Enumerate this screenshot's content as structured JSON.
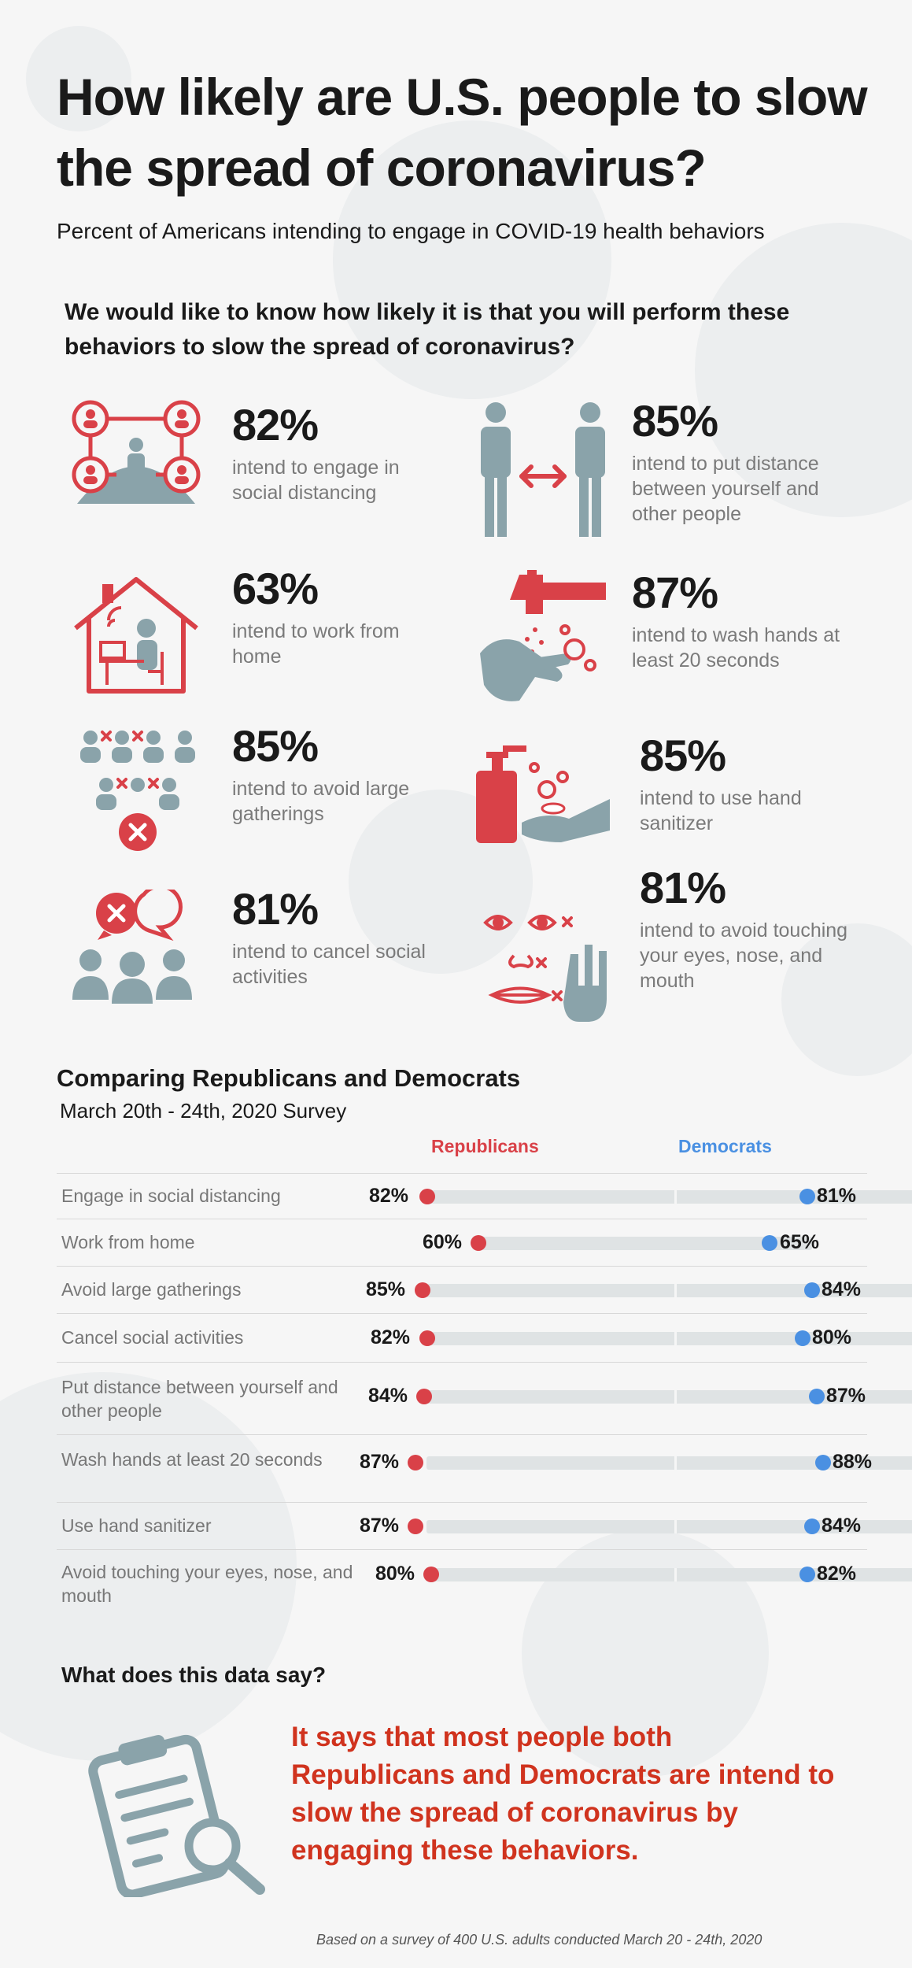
{
  "header": {
    "title": "How likely are U.S. people to slow the spread of coronavirus?",
    "subtitle": "Percent of Americans intending to engage in COVID-19 health behaviors",
    "question": "We would like to know how likely it is that you will perform these behaviors to slow the spread of coronavirus?"
  },
  "stats": [
    {
      "pct": "82%",
      "desc": "intend to engage in social distancing",
      "icon": "social-network-icon"
    },
    {
      "pct": "85%",
      "desc": "intend to put distance between yourself and other people",
      "icon": "distance-people-icon"
    },
    {
      "pct": "63%",
      "desc": "intend to work from home",
      "icon": "work-from-home-icon"
    },
    {
      "pct": "87%",
      "desc": "intend to wash hands at least 20 seconds",
      "icon": "hand-washing-icon"
    },
    {
      "pct": "85%",
      "desc": "intend to avoid large gatherings",
      "icon": "gathering-icon"
    },
    {
      "pct": "85%",
      "desc": "intend to use hand sanitizer",
      "icon": "hand-sanitizer-icon"
    },
    {
      "pct": "81%",
      "desc": "intend to cancel social activities",
      "icon": "cancel-social-icon"
    },
    {
      "pct": "81%",
      "desc": "intend to avoid touching your eyes, nose, and mouth",
      "icon": "face-touch-icon"
    }
  ],
  "comparison": {
    "title": "Comparing Republicans and Democrats",
    "subtitle": "March 20th - 24th, 2020 Survey",
    "legend": {
      "republicans": "Republicans",
      "democrats": "Democrats"
    },
    "colors": {
      "republicans": "#d94148",
      "democrats": "#4a90e2"
    },
    "rows": [
      {
        "label": "Engage in social distancing",
        "rep": "82%",
        "dem": "81%"
      },
      {
        "label": "Work from home",
        "rep": "60%",
        "dem": "65%"
      },
      {
        "label": "Avoid large gatherings",
        "rep": "85%",
        "dem": "84%"
      },
      {
        "label": "Cancel social activities",
        "rep": "82%",
        "dem": "80%"
      },
      {
        "label": "Put distance between yourself and other people",
        "rep": "84%",
        "dem": "87%"
      },
      {
        "label": "Wash hands at least 20 seconds",
        "rep": "87%",
        "dem": "88%"
      },
      {
        "label": "Use hand sanitizer",
        "rep": "87%",
        "dem": "84%"
      },
      {
        "label": "Avoid touching your eyes, nose, and mouth",
        "rep": "80%",
        "dem": "82%"
      }
    ]
  },
  "takeaway": {
    "heading": "What does this data say?",
    "text": "It says that most people both Republicans and Democrats are intend to slow the spread of coronavirus by engaging these behaviors.",
    "icon": "clipboard-search-icon"
  },
  "footnote": "Based on a survey of 400 U.S. adults conducted March 20 - 24th, 2020"
}
